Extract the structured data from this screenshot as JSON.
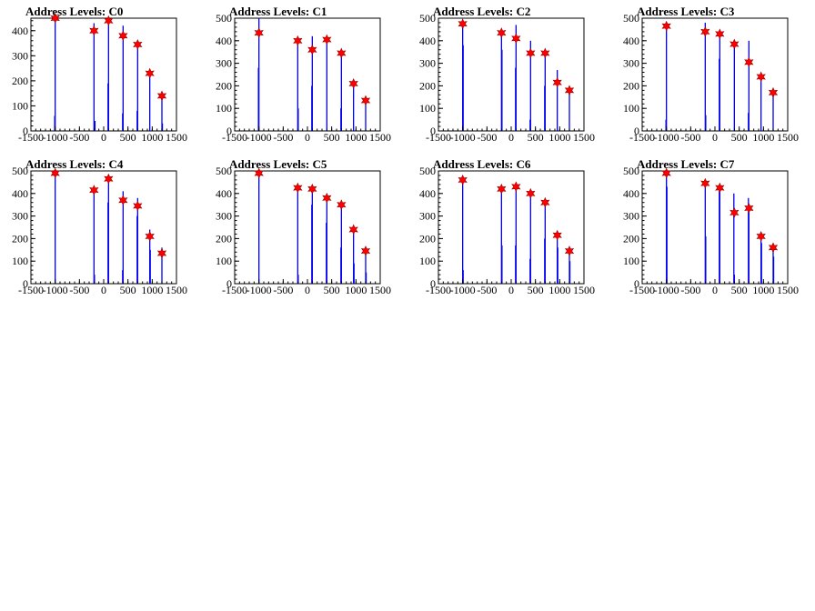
{
  "chart_data": [
    {
      "type": "bar",
      "title": "Address Levels: C0",
      "xlim": [
        -1500,
        1500
      ],
      "ylim": [
        0,
        450
      ],
      "xticks": [
        -1500,
        -1000,
        -500,
        0,
        500,
        1000,
        1500
      ],
      "yticks": [
        0,
        100,
        200,
        300,
        400
      ],
      "peaks": [
        {
          "x": -1000,
          "y": 470
        },
        {
          "x": -200,
          "y": 400
        },
        {
          "x": 100,
          "y": 440
        },
        {
          "x": 400,
          "y": 380
        },
        {
          "x": 700,
          "y": 345
        },
        {
          "x": 950,
          "y": 230
        },
        {
          "x": 1200,
          "y": 140
        }
      ],
      "spikes": [
        {
          "x": -1010,
          "y": 60
        },
        {
          "x": -1000,
          "y": 470
        },
        {
          "x": -200,
          "y": 430
        },
        {
          "x": -180,
          "y": 40
        },
        {
          "x": 90,
          "y": 190
        },
        {
          "x": 100,
          "y": 450
        },
        {
          "x": 390,
          "y": 70
        },
        {
          "x": 400,
          "y": 420
        },
        {
          "x": 690,
          "y": 80
        },
        {
          "x": 700,
          "y": 350
        },
        {
          "x": 950,
          "y": 230
        },
        {
          "x": 1200,
          "y": 150
        },
        {
          "x": 1210,
          "y": 30
        }
      ]
    },
    {
      "type": "bar",
      "title": "Address Levels: C1",
      "xlim": [
        -1500,
        1500
      ],
      "ylim": [
        0,
        500
      ],
      "xticks": [
        -1500,
        -1000,
        -500,
        0,
        500,
        1000,
        1500
      ],
      "yticks": [
        0,
        100,
        200,
        300,
        400,
        500
      ],
      "peaks": [
        {
          "x": -1000,
          "y": 435
        },
        {
          "x": -200,
          "y": 400
        },
        {
          "x": 100,
          "y": 360
        },
        {
          "x": 400,
          "y": 405
        },
        {
          "x": 700,
          "y": 345
        },
        {
          "x": 950,
          "y": 210
        },
        {
          "x": 1200,
          "y": 135
        }
      ],
      "spikes": [
        {
          "x": -1010,
          "y": 280
        },
        {
          "x": -1000,
          "y": 500
        },
        {
          "x": -200,
          "y": 410
        },
        {
          "x": -190,
          "y": 100
        },
        {
          "x": 90,
          "y": 200
        },
        {
          "x": 100,
          "y": 420
        },
        {
          "x": 400,
          "y": 400
        },
        {
          "x": 690,
          "y": 100
        },
        {
          "x": 700,
          "y": 350
        },
        {
          "x": 950,
          "y": 220
        },
        {
          "x": 1200,
          "y": 150
        }
      ]
    },
    {
      "type": "bar",
      "title": "Address Levels: C2",
      "xlim": [
        -1500,
        1500
      ],
      "ylim": [
        0,
        500
      ],
      "xticks": [
        -1500,
        -1000,
        -500,
        0,
        500,
        1000,
        1500
      ],
      "yticks": [
        0,
        100,
        200,
        300,
        400,
        500
      ],
      "peaks": [
        {
          "x": -1000,
          "y": 475
        },
        {
          "x": -200,
          "y": 435
        },
        {
          "x": 100,
          "y": 410
        },
        {
          "x": 400,
          "y": 345
        },
        {
          "x": 700,
          "y": 345
        },
        {
          "x": 950,
          "y": 215
        },
        {
          "x": 1200,
          "y": 180
        }
      ],
      "spikes": [
        {
          "x": -1000,
          "y": 490
        },
        {
          "x": -990,
          "y": 380
        },
        {
          "x": -200,
          "y": 440
        },
        {
          "x": -190,
          "y": 360
        },
        {
          "x": 90,
          "y": 280
        },
        {
          "x": 100,
          "y": 470
        },
        {
          "x": 390,
          "y": 50
        },
        {
          "x": 400,
          "y": 400
        },
        {
          "x": 690,
          "y": 200
        },
        {
          "x": 700,
          "y": 350
        },
        {
          "x": 950,
          "y": 270
        },
        {
          "x": 1200,
          "y": 190
        }
      ]
    },
    {
      "type": "bar",
      "title": "Address Levels: C3",
      "xlim": [
        -1500,
        1500
      ],
      "ylim": [
        0,
        500
      ],
      "xticks": [
        -1500,
        -1000,
        -500,
        0,
        500,
        1000,
        1500
      ],
      "yticks": [
        0,
        100,
        200,
        300,
        400,
        500
      ],
      "peaks": [
        {
          "x": -1000,
          "y": 465
        },
        {
          "x": -200,
          "y": 440
        },
        {
          "x": 100,
          "y": 430
        },
        {
          "x": 400,
          "y": 385
        },
        {
          "x": 700,
          "y": 305
        },
        {
          "x": 950,
          "y": 240
        },
        {
          "x": 1200,
          "y": 170
        }
      ],
      "spikes": [
        {
          "x": -1010,
          "y": 50
        },
        {
          "x": -1000,
          "y": 470
        },
        {
          "x": -200,
          "y": 480
        },
        {
          "x": -190,
          "y": 70
        },
        {
          "x": 90,
          "y": 320
        },
        {
          "x": 100,
          "y": 440
        },
        {
          "x": 400,
          "y": 390
        },
        {
          "x": 690,
          "y": 80
        },
        {
          "x": 700,
          "y": 400
        },
        {
          "x": 950,
          "y": 250
        },
        {
          "x": 1200,
          "y": 180
        }
      ]
    },
    {
      "type": "bar",
      "title": "Address Levels: C4",
      "xlim": [
        -1500,
        1500
      ],
      "ylim": [
        0,
        500
      ],
      "xticks": [
        -1500,
        -1000,
        -500,
        0,
        500,
        1000,
        1500
      ],
      "yticks": [
        0,
        100,
        200,
        300,
        400,
        500
      ],
      "peaks": [
        {
          "x": -1000,
          "y": 490
        },
        {
          "x": -200,
          "y": 415
        },
        {
          "x": 100,
          "y": 465
        },
        {
          "x": 400,
          "y": 370
        },
        {
          "x": 700,
          "y": 345
        },
        {
          "x": 950,
          "y": 210
        },
        {
          "x": 1200,
          "y": 135
        }
      ],
      "spikes": [
        {
          "x": -1000,
          "y": 500
        },
        {
          "x": -200,
          "y": 400
        },
        {
          "x": -190,
          "y": 40
        },
        {
          "x": 90,
          "y": 360
        },
        {
          "x": 100,
          "y": 470
        },
        {
          "x": 390,
          "y": 60
        },
        {
          "x": 400,
          "y": 410
        },
        {
          "x": 690,
          "y": 300
        },
        {
          "x": 700,
          "y": 380
        },
        {
          "x": 950,
          "y": 240
        },
        {
          "x": 960,
          "y": 150
        },
        {
          "x": 1200,
          "y": 160
        }
      ]
    },
    {
      "type": "bar",
      "title": "Address Levels: C5",
      "xlim": [
        -1500,
        1500
      ],
      "ylim": [
        0,
        500
      ],
      "xticks": [
        -1500,
        -1000,
        -500,
        0,
        500,
        1000,
        1500
      ],
      "yticks": [
        0,
        100,
        200,
        300,
        400,
        500
      ],
      "peaks": [
        {
          "x": -1000,
          "y": 490
        },
        {
          "x": -200,
          "y": 425
        },
        {
          "x": 100,
          "y": 420
        },
        {
          "x": 400,
          "y": 380
        },
        {
          "x": 700,
          "y": 350
        },
        {
          "x": 950,
          "y": 240
        },
        {
          "x": 1200,
          "y": 145
        }
      ],
      "spikes": [
        {
          "x": -1000,
          "y": 500
        },
        {
          "x": -200,
          "y": 430
        },
        {
          "x": -190,
          "y": 40
        },
        {
          "x": 90,
          "y": 350
        },
        {
          "x": 100,
          "y": 430
        },
        {
          "x": 390,
          "y": 270
        },
        {
          "x": 400,
          "y": 390
        },
        {
          "x": 690,
          "y": 160
        },
        {
          "x": 700,
          "y": 360
        },
        {
          "x": 950,
          "y": 240
        },
        {
          "x": 960,
          "y": 90
        },
        {
          "x": 1200,
          "y": 150
        },
        {
          "x": 1210,
          "y": 50
        }
      ]
    },
    {
      "type": "bar",
      "title": "Address Levels: C6",
      "xlim": [
        -1500,
        1500
      ],
      "ylim": [
        0,
        500
      ],
      "xticks": [
        -1500,
        -1000,
        -500,
        0,
        500,
        1000,
        1500
      ],
      "yticks": [
        0,
        100,
        200,
        300,
        400,
        500
      ],
      "peaks": [
        {
          "x": -1000,
          "y": 460
        },
        {
          "x": -200,
          "y": 420
        },
        {
          "x": 100,
          "y": 430
        },
        {
          "x": 400,
          "y": 400
        },
        {
          "x": 700,
          "y": 360
        },
        {
          "x": 950,
          "y": 215
        },
        {
          "x": 1200,
          "y": 145
        }
      ],
      "spikes": [
        {
          "x": -1000,
          "y": 470
        },
        {
          "x": -990,
          "y": 60
        },
        {
          "x": -200,
          "y": 430
        },
        {
          "x": -190,
          "y": 170
        },
        {
          "x": 90,
          "y": 170
        },
        {
          "x": 100,
          "y": 440
        },
        {
          "x": 390,
          "y": 110
        },
        {
          "x": 400,
          "y": 410
        },
        {
          "x": 690,
          "y": 200
        },
        {
          "x": 700,
          "y": 370
        },
        {
          "x": 950,
          "y": 220
        },
        {
          "x": 960,
          "y": 160
        },
        {
          "x": 1200,
          "y": 150
        },
        {
          "x": 1210,
          "y": 100
        }
      ]
    },
    {
      "type": "bar",
      "title": "Address Levels: C7",
      "xlim": [
        -1500,
        1500
      ],
      "ylim": [
        0,
        500
      ],
      "xticks": [
        -1500,
        -1000,
        -500,
        0,
        500,
        1000,
        1500
      ],
      "yticks": [
        0,
        100,
        200,
        300,
        400,
        500
      ],
      "peaks": [
        {
          "x": -1000,
          "y": 490
        },
        {
          "x": -200,
          "y": 445
        },
        {
          "x": 100,
          "y": 425
        },
        {
          "x": 400,
          "y": 315
        },
        {
          "x": 700,
          "y": 335
        },
        {
          "x": 950,
          "y": 210
        },
        {
          "x": 1200,
          "y": 160
        }
      ],
      "spikes": [
        {
          "x": -1000,
          "y": 500
        },
        {
          "x": -990,
          "y": 430
        },
        {
          "x": -200,
          "y": 450
        },
        {
          "x": -190,
          "y": 210
        },
        {
          "x": 90,
          "y": 420
        },
        {
          "x": 100,
          "y": 430
        },
        {
          "x": 390,
          "y": 400
        },
        {
          "x": 400,
          "y": 40
        },
        {
          "x": 690,
          "y": 380
        },
        {
          "x": 700,
          "y": 330
        },
        {
          "x": 950,
          "y": 220
        },
        {
          "x": 960,
          "y": 180
        },
        {
          "x": 1200,
          "y": 170
        },
        {
          "x": 1210,
          "y": 120
        }
      ]
    }
  ],
  "colors": {
    "spike": "#0000ee",
    "marker_fill": "#ff0000",
    "marker_stroke": "#990000",
    "axis": "#000000"
  }
}
